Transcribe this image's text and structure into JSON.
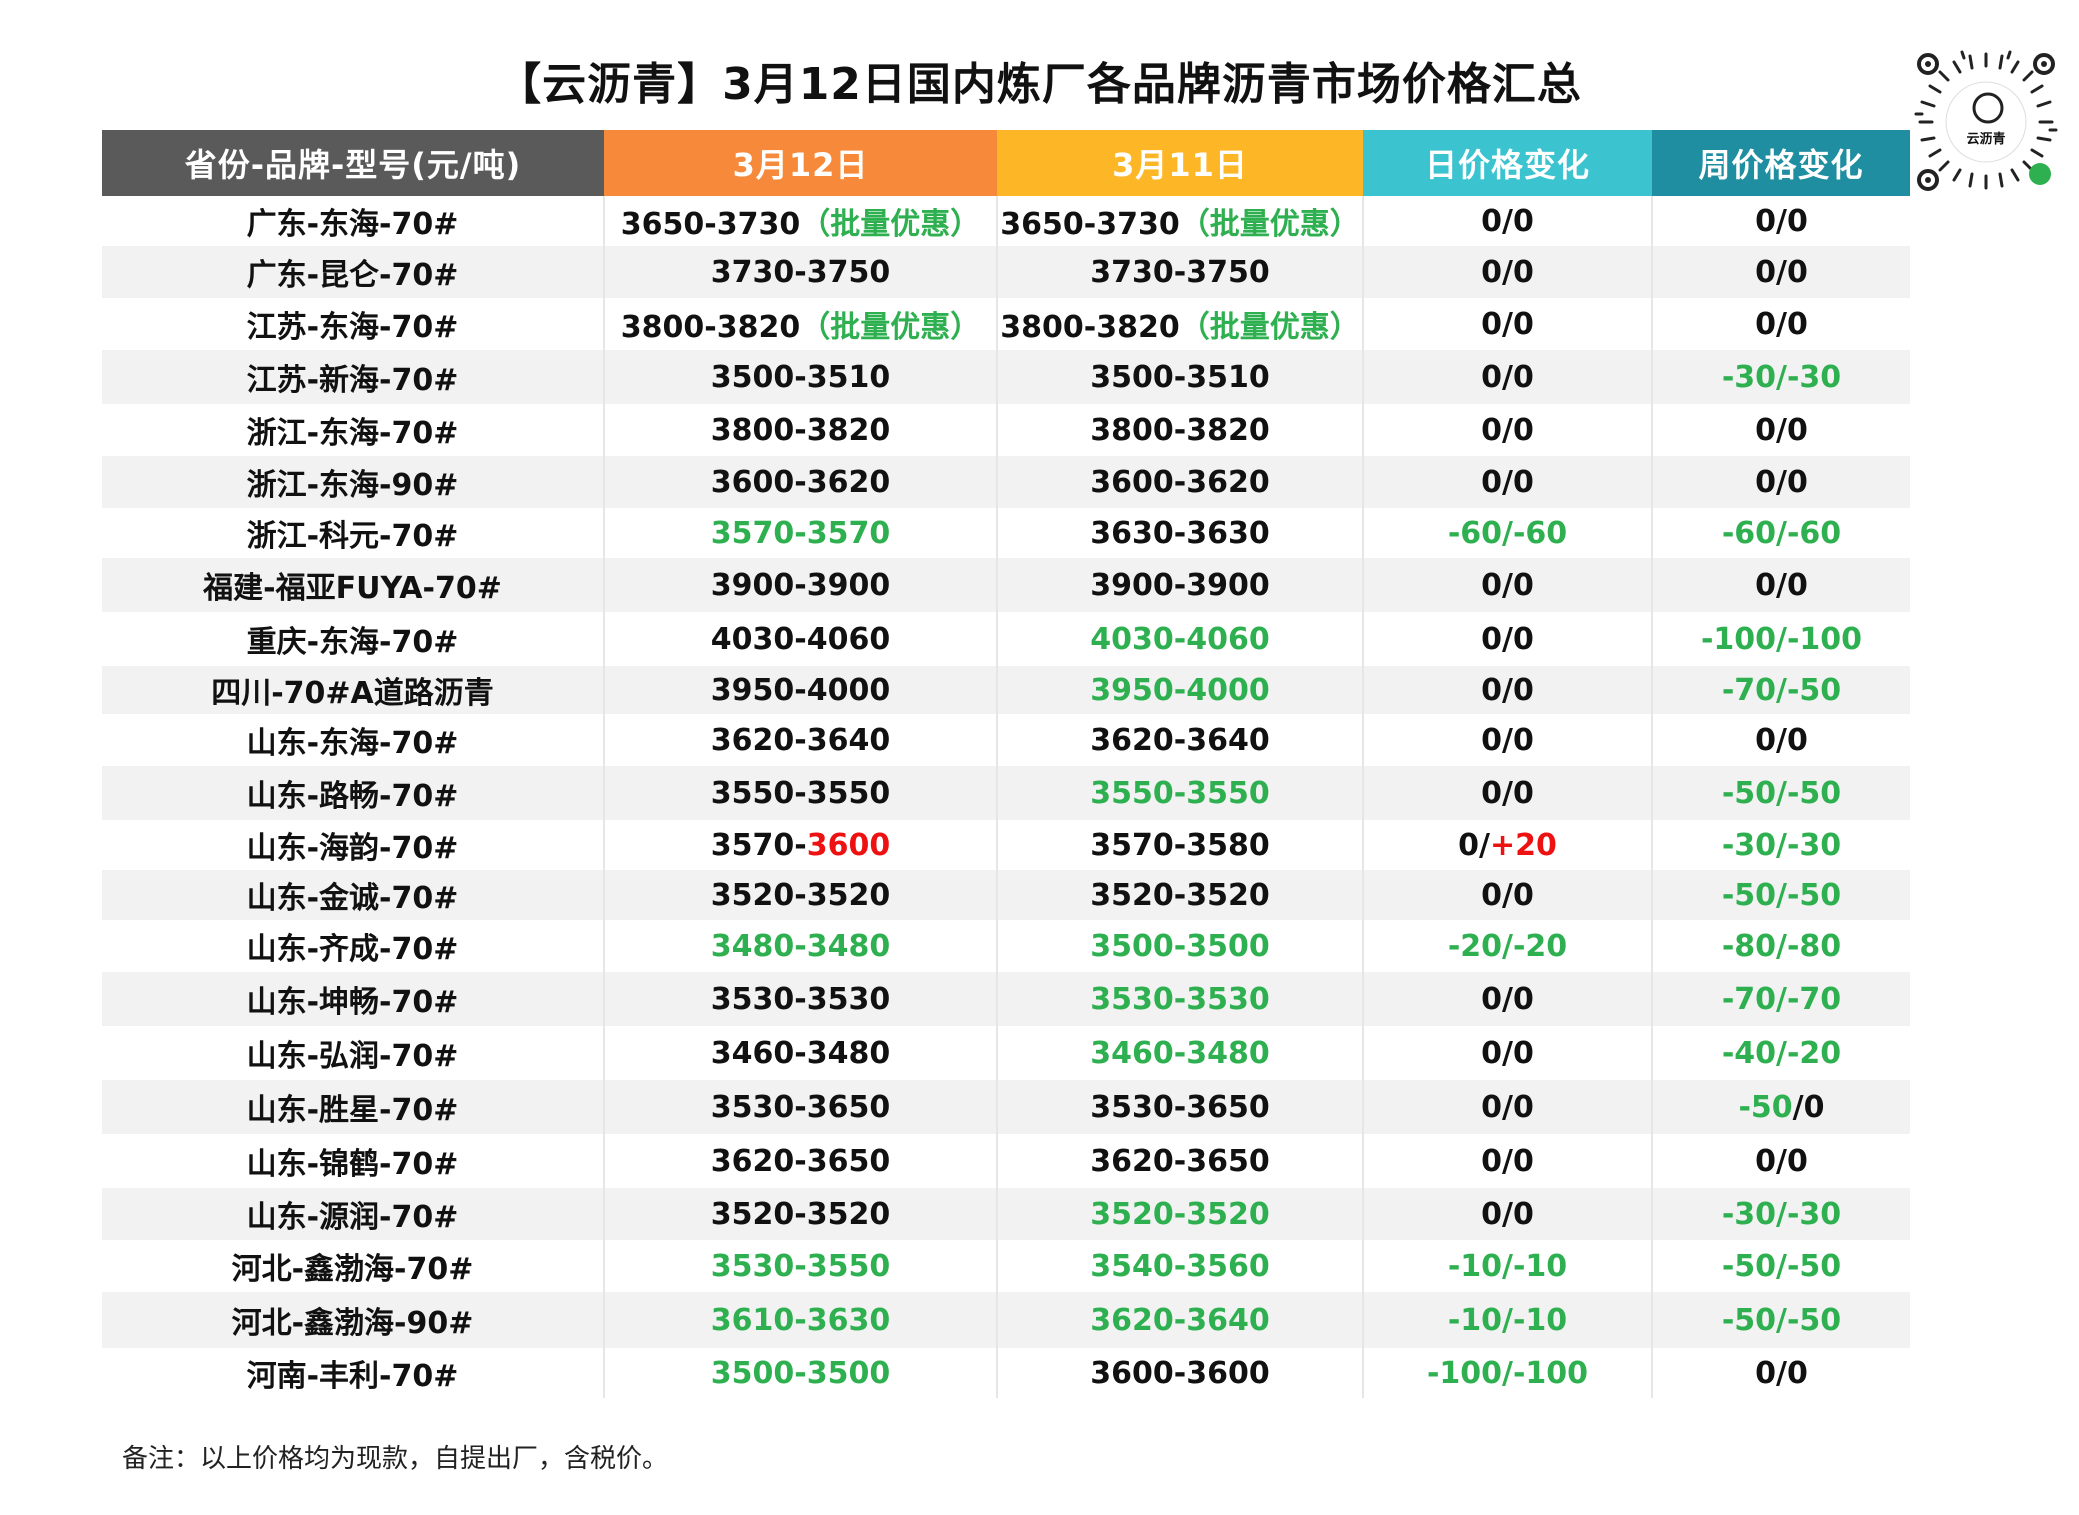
{
  "title": "【云沥青】3月12日国内炼厂各品牌沥青市场价格汇总",
  "logo_text": "云沥青",
  "colors": {
    "header_gray": "#5a5a5a",
    "header_orange": "#f78a3a",
    "header_yellow": "#fdb626",
    "header_cyan": "#3cc3d0",
    "header_teal": "#1f8ea0",
    "row_shade": "#f2f2f2",
    "green": "#2fb050",
    "red": "#ee1111",
    "black": "#111111"
  },
  "chart_data": {
    "type": "table",
    "title": "【云沥青】3月12日国内炼厂各品牌沥青市场价格汇总",
    "columns": [
      "省份-品牌-型号(元/吨)",
      "3月12日",
      "3月11日",
      "日价格变化",
      "周价格变化"
    ],
    "rows": [
      {
        "name": "广东-东海-70#",
        "today": [
          {
            "t": "3650-3730",
            "c": "k"
          },
          {
            "t": "（批量优惠）",
            "c": "g"
          }
        ],
        "yesterday": [
          {
            "t": "3650-3730",
            "c": "k"
          },
          {
            "t": "（批量优惠）",
            "c": "g"
          }
        ],
        "day_change": [
          {
            "t": "0/0",
            "c": "k"
          }
        ],
        "week_change": [
          {
            "t": "0/0",
            "c": "k"
          }
        ]
      },
      {
        "name": "广东-昆仑-70#",
        "today": [
          {
            "t": "3730-3750",
            "c": "k"
          }
        ],
        "yesterday": [
          {
            "t": "3730-3750",
            "c": "k"
          }
        ],
        "day_change": [
          {
            "t": "0/0",
            "c": "k"
          }
        ],
        "week_change": [
          {
            "t": "0/0",
            "c": "k"
          }
        ]
      },
      {
        "name": "江苏-东海-70#",
        "today": [
          {
            "t": "3800-3820",
            "c": "k"
          },
          {
            "t": "（批量优惠）",
            "c": "g"
          }
        ],
        "yesterday": [
          {
            "t": "3800-3820",
            "c": "k"
          },
          {
            "t": "（批量优惠）",
            "c": "g"
          }
        ],
        "day_change": [
          {
            "t": "0/0",
            "c": "k"
          }
        ],
        "week_change": [
          {
            "t": "0/0",
            "c": "k"
          }
        ]
      },
      {
        "name": "江苏-新海-70#",
        "today": [
          {
            "t": "3500-3510",
            "c": "k"
          }
        ],
        "yesterday": [
          {
            "t": "3500-3510",
            "c": "k"
          }
        ],
        "day_change": [
          {
            "t": "0/0",
            "c": "k"
          }
        ],
        "week_change": [
          {
            "t": "-30/-30",
            "c": "g"
          }
        ]
      },
      {
        "name": "浙江-东海-70#",
        "today": [
          {
            "t": "3800-3820",
            "c": "k"
          }
        ],
        "yesterday": [
          {
            "t": "3800-3820",
            "c": "k"
          }
        ],
        "day_change": [
          {
            "t": "0/0",
            "c": "k"
          }
        ],
        "week_change": [
          {
            "t": "0/0",
            "c": "k"
          }
        ]
      },
      {
        "name": "浙江-东海-90#",
        "today": [
          {
            "t": "3600-3620",
            "c": "k"
          }
        ],
        "yesterday": [
          {
            "t": "3600-3620",
            "c": "k"
          }
        ],
        "day_change": [
          {
            "t": "0/0",
            "c": "k"
          }
        ],
        "week_change": [
          {
            "t": "0/0",
            "c": "k"
          }
        ]
      },
      {
        "name": "浙江-科元-70#",
        "today": [
          {
            "t": "3570-3570",
            "c": "g"
          }
        ],
        "yesterday": [
          {
            "t": "3630-3630",
            "c": "k"
          }
        ],
        "day_change": [
          {
            "t": "-60/-60",
            "c": "g"
          }
        ],
        "week_change": [
          {
            "t": "-60/-60",
            "c": "g"
          }
        ]
      },
      {
        "name": "福建-福亚FUYA-70#",
        "today": [
          {
            "t": "3900-3900",
            "c": "k"
          }
        ],
        "yesterday": [
          {
            "t": "3900-3900",
            "c": "k"
          }
        ],
        "day_change": [
          {
            "t": "0/0",
            "c": "k"
          }
        ],
        "week_change": [
          {
            "t": "0/0",
            "c": "k"
          }
        ]
      },
      {
        "name": "重庆-东海-70#",
        "today": [
          {
            "t": "4030-4060",
            "c": "k"
          }
        ],
        "yesterday": [
          {
            "t": "4030-4060",
            "c": "g"
          }
        ],
        "day_change": [
          {
            "t": "0/0",
            "c": "k"
          }
        ],
        "week_change": [
          {
            "t": "-100/-100",
            "c": "g"
          }
        ]
      },
      {
        "name": "四川-70#A道路沥青",
        "today": [
          {
            "t": "3950-4000",
            "c": "k"
          }
        ],
        "yesterday": [
          {
            "t": "3950-4000",
            "c": "g"
          }
        ],
        "day_change": [
          {
            "t": "0/0",
            "c": "k"
          }
        ],
        "week_change": [
          {
            "t": "-70/-50",
            "c": "g"
          }
        ]
      },
      {
        "name": "山东-东海-70#",
        "today": [
          {
            "t": "3620-3640",
            "c": "k"
          }
        ],
        "yesterday": [
          {
            "t": "3620-3640",
            "c": "k"
          }
        ],
        "day_change": [
          {
            "t": "0/0",
            "c": "k"
          }
        ],
        "week_change": [
          {
            "t": "0/0",
            "c": "k"
          }
        ]
      },
      {
        "name": "山东-路畅-70#",
        "today": [
          {
            "t": "3550-3550",
            "c": "k"
          }
        ],
        "yesterday": [
          {
            "t": "3550-3550",
            "c": "g"
          }
        ],
        "day_change": [
          {
            "t": "0/0",
            "c": "k"
          }
        ],
        "week_change": [
          {
            "t": "-50/-50",
            "c": "g"
          }
        ]
      },
      {
        "name": "山东-海韵-70#",
        "today": [
          {
            "t": "3570-",
            "c": "k"
          },
          {
            "t": "3600",
            "c": "r"
          }
        ],
        "yesterday": [
          {
            "t": "3570-3580",
            "c": "k"
          }
        ],
        "day_change": [
          {
            "t": "0/",
            "c": "k"
          },
          {
            "t": "+20",
            "c": "r"
          }
        ],
        "week_change": [
          {
            "t": "-30/-30",
            "c": "g"
          }
        ]
      },
      {
        "name": "山东-金诚-70#",
        "today": [
          {
            "t": "3520-3520",
            "c": "k"
          }
        ],
        "yesterday": [
          {
            "t": "3520-3520",
            "c": "k"
          }
        ],
        "day_change": [
          {
            "t": "0/0",
            "c": "k"
          }
        ],
        "week_change": [
          {
            "t": "-50/-50",
            "c": "g"
          }
        ]
      },
      {
        "name": "山东-齐成-70#",
        "today": [
          {
            "t": "3480-3480",
            "c": "g"
          }
        ],
        "yesterday": [
          {
            "t": "3500-3500",
            "c": "g"
          }
        ],
        "day_change": [
          {
            "t": "-20/-20",
            "c": "g"
          }
        ],
        "week_change": [
          {
            "t": "-80/-80",
            "c": "g"
          }
        ]
      },
      {
        "name": "山东-坤畅-70#",
        "today": [
          {
            "t": "3530-3530",
            "c": "k"
          }
        ],
        "yesterday": [
          {
            "t": "3530-3530",
            "c": "g"
          }
        ],
        "day_change": [
          {
            "t": "0/0",
            "c": "k"
          }
        ],
        "week_change": [
          {
            "t": "-70/-70",
            "c": "g"
          }
        ]
      },
      {
        "name": "山东-弘润-70#",
        "today": [
          {
            "t": "3460-3480",
            "c": "k"
          }
        ],
        "yesterday": [
          {
            "t": "3460-3480",
            "c": "g"
          }
        ],
        "day_change": [
          {
            "t": "0/0",
            "c": "k"
          }
        ],
        "week_change": [
          {
            "t": "-40/-20",
            "c": "g"
          }
        ]
      },
      {
        "name": "山东-胜星-70#",
        "today": [
          {
            "t": "3530-3650",
            "c": "k"
          }
        ],
        "yesterday": [
          {
            "t": "3530-3650",
            "c": "k"
          }
        ],
        "day_change": [
          {
            "t": "0/0",
            "c": "k"
          }
        ],
        "week_change": [
          {
            "t": "-50",
            "c": "g"
          },
          {
            "t": "/0",
            "c": "k"
          }
        ]
      },
      {
        "name": "山东-锦鹤-70#",
        "today": [
          {
            "t": "3620-3650",
            "c": "k"
          }
        ],
        "yesterday": [
          {
            "t": "3620-3650",
            "c": "k"
          }
        ],
        "day_change": [
          {
            "t": "0/0",
            "c": "k"
          }
        ],
        "week_change": [
          {
            "t": "0/0",
            "c": "k"
          }
        ]
      },
      {
        "name": "山东-源润-70#",
        "today": [
          {
            "t": "3520-3520",
            "c": "k"
          }
        ],
        "yesterday": [
          {
            "t": "3520-3520",
            "c": "g"
          }
        ],
        "day_change": [
          {
            "t": "0/0",
            "c": "k"
          }
        ],
        "week_change": [
          {
            "t": "-30/-30",
            "c": "g"
          }
        ]
      },
      {
        "name": "河北-鑫渤海-70#",
        "today": [
          {
            "t": "3530-3550",
            "c": "g"
          }
        ],
        "yesterday": [
          {
            "t": "3540-3560",
            "c": "g"
          }
        ],
        "day_change": [
          {
            "t": "-10/-10",
            "c": "g"
          }
        ],
        "week_change": [
          {
            "t": "-50/-50",
            "c": "g"
          }
        ]
      },
      {
        "name": "河北-鑫渤海-90#",
        "today": [
          {
            "t": "3610-3630",
            "c": "g"
          }
        ],
        "yesterday": [
          {
            "t": "3620-3640",
            "c": "g"
          }
        ],
        "day_change": [
          {
            "t": "-10/-10",
            "c": "g"
          }
        ],
        "week_change": [
          {
            "t": "-50/-50",
            "c": "g"
          }
        ]
      },
      {
        "name": "河南-丰利-70#",
        "today": [
          {
            "t": "3500-3500",
            "c": "g"
          }
        ],
        "yesterday": [
          {
            "t": "3600-3600",
            "c": "k"
          }
        ],
        "day_change": [
          {
            "t": "-100/-100",
            "c": "g"
          }
        ],
        "week_change": [
          {
            "t": "0/0",
            "c": "k"
          }
        ]
      }
    ]
  },
  "note": "备注：以上价格均为现款，自提出厂，含税价。"
}
